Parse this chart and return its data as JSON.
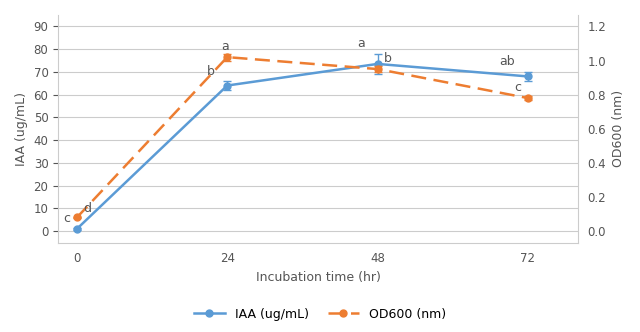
{
  "x": [
    0,
    24,
    48,
    72
  ],
  "iaa_values": [
    1.0,
    64.0,
    73.5,
    68.0
  ],
  "iaa_errors": [
    0.5,
    2.0,
    4.5,
    2.0
  ],
  "od600_values": [
    0.08,
    1.02,
    0.95,
    0.78
  ],
  "od600_errors": [
    0.005,
    0.02,
    0.02,
    0.01
  ],
  "iaa_annotations": [
    "c",
    "b",
    "a",
    "ab"
  ],
  "od600_annotations": [
    "d",
    "a",
    "b",
    "c"
  ],
  "iaa_color": "#5B9BD5",
  "od600_color": "#ED7D31",
  "xlabel": "Incubation time (hr)",
  "ylabel_left": "IAA (ug/mL)",
  "ylabel_right": "OD600 (nm)",
  "xlim": [
    -3,
    80
  ],
  "ylim_left": [
    -5,
    95
  ],
  "ylim_right": [
    -0.067,
    1.267
  ],
  "yticks_left": [
    0,
    10,
    20,
    30,
    40,
    50,
    60,
    70,
    80,
    90
  ],
  "yticks_right": [
    0,
    0.2,
    0.4,
    0.6,
    0.8,
    1.0,
    1.2
  ],
  "xticks": [
    0,
    24,
    48,
    72
  ],
  "legend_iaa": "IAA (ug/mL)",
  "legend_od": "OD600 (nm)",
  "background_color": "#FFFFFF",
  "grid_color": "#CCCCCC",
  "axis_fontsize": 9,
  "tick_fontsize": 8.5,
  "annot_fontsize": 9
}
